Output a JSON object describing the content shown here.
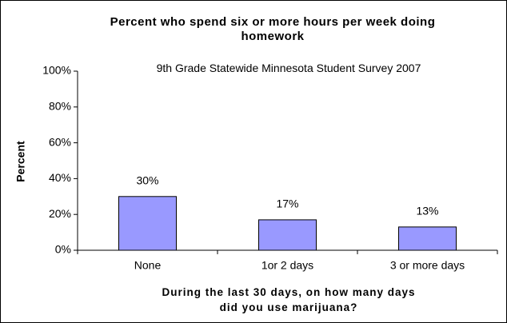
{
  "chart_data": {
    "type": "bar",
    "title": "Percent who spend six or more hours per week doing homework",
    "subtitle": "9th Grade Statewide Minnesota Student Survey 2007",
    "x_label": "During the last 30 days, on how many days did you use marijuana?",
    "y_label": "Percent",
    "categories": [
      "None",
      "1or 2 days",
      "3 or more days"
    ],
    "values": [
      30,
      17,
      13
    ],
    "value_labels": [
      "30%",
      "17%",
      "13%"
    ],
    "color": "#9999ff",
    "ylim": [
      0,
      100
    ],
    "yticks": [
      {
        "value": 0,
        "label": "0%"
      },
      {
        "value": 20,
        "label": "20%"
      },
      {
        "value": 40,
        "label": "40%"
      },
      {
        "value": 60,
        "label": "60%"
      },
      {
        "value": 80,
        "label": "80%"
      },
      {
        "value": 100,
        "label": "100%"
      }
    ],
    "grid": false
  }
}
